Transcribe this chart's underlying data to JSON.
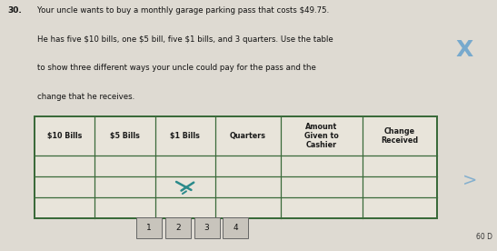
{
  "problem_number": "30.",
  "text_line1": "Your uncle wants to buy a monthly garage parking pass that costs $49.75.",
  "text_line2": "He has five $10 bills, one $5 bill, five $1 bills, and 3 quarters. Use the table",
  "text_line3": "to show three different ways your uncle could pay for the pass and the",
  "text_line4": "change that he receives.",
  "col_headers": [
    "$10 Bills",
    "$5 Bills",
    "$1 Bills",
    "Quarters",
    "Amount\nGiven to\nCashier",
    "Change\nReceived"
  ],
  "num_rows": 3,
  "bg_color": "#dedad2",
  "table_bg": "#e8e4da",
  "header_color": "#1a1a1a",
  "border_color": "#3a6a3a",
  "doodle_color": "#2a8a8a",
  "right_x_color": "#5599cc",
  "bottom_buttons": [
    "1",
    "2",
    "3",
    "4"
  ],
  "bottom_right_text": "60 D",
  "col_widths_rel": [
    1.0,
    1.0,
    1.0,
    1.1,
    1.35,
    1.25
  ]
}
